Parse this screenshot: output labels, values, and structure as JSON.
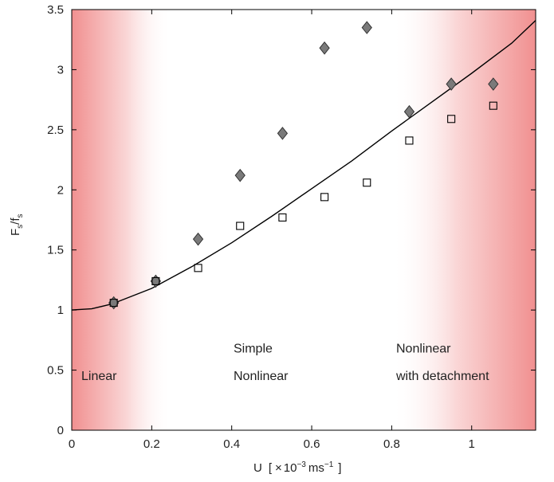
{
  "chart_data": {
    "type": "scatter",
    "xlim": [
      0,
      1.16
    ],
    "ylim": [
      0,
      3.5
    ],
    "x_ticks": [
      "0",
      "0.2",
      "0.4",
      "0.6",
      "0.8",
      "1"
    ],
    "y_ticks": [
      "0",
      "0.5",
      "1",
      "1.5",
      "2",
      "2.5",
      "3",
      "3.5"
    ],
    "xlabel": {
      "main": "U",
      "bracket_open": "[",
      "times": "×",
      "base": "10",
      "exp": "−3",
      "unit": "ms",
      "unit_exp": "−1",
      "bracket_close": "]"
    },
    "ylabel": {
      "main": "F",
      "sub1": "s",
      "slash": "/f",
      "sub2": "s"
    },
    "grid": false,
    "series": [
      {
        "marker": "diamond",
        "color": "#7a7a7a",
        "points": [
          {
            "x": 0.105,
            "y": 1.06
          },
          {
            "x": 0.21,
            "y": 1.24
          },
          {
            "x": 0.316,
            "y": 1.59
          },
          {
            "x": 0.421,
            "y": 2.12
          },
          {
            "x": 0.527,
            "y": 2.47
          },
          {
            "x": 0.632,
            "y": 3.18
          },
          {
            "x": 0.738,
            "y": 3.35
          },
          {
            "x": 0.844,
            "y": 2.65
          },
          {
            "x": 0.949,
            "y": 2.88
          },
          {
            "x": 1.054,
            "y": 2.88
          }
        ]
      },
      {
        "marker": "open-square",
        "color": "#000000",
        "points": [
          {
            "x": 0.105,
            "y": 1.06
          },
          {
            "x": 0.21,
            "y": 1.24
          },
          {
            "x": 0.316,
            "y": 1.35
          },
          {
            "x": 0.421,
            "y": 1.7
          },
          {
            "x": 0.527,
            "y": 1.77
          },
          {
            "x": 0.632,
            "y": 1.94
          },
          {
            "x": 0.738,
            "y": 2.06
          },
          {
            "x": 0.844,
            "y": 2.41
          },
          {
            "x": 0.949,
            "y": 2.59
          },
          {
            "x": 1.054,
            "y": 2.7
          }
        ]
      },
      {
        "marker": "curve",
        "color": "#000000",
        "points": [
          {
            "x": 0.0,
            "y": 1.0
          },
          {
            "x": 0.05,
            "y": 1.01
          },
          {
            "x": 0.1,
            "y": 1.05
          },
          {
            "x": 0.2,
            "y": 1.18
          },
          {
            "x": 0.3,
            "y": 1.36
          },
          {
            "x": 0.4,
            "y": 1.56
          },
          {
            "x": 0.5,
            "y": 1.78
          },
          {
            "x": 0.6,
            "y": 2.01
          },
          {
            "x": 0.7,
            "y": 2.24
          },
          {
            "x": 0.8,
            "y": 2.49
          },
          {
            "x": 0.9,
            "y": 2.73
          },
          {
            "x": 1.0,
            "y": 2.97
          },
          {
            "x": 1.1,
            "y": 3.22
          },
          {
            "x": 1.16,
            "y": 3.41
          }
        ]
      }
    ],
    "regions": [
      {
        "label_lines": [
          "Linear"
        ],
        "x_start": 0.0,
        "x_end": 0.25,
        "shade": "left"
      },
      {
        "label_lines": [
          "Simple",
          "Nonlinear"
        ],
        "x_start": 0.25,
        "x_end": 0.8,
        "shade": "none"
      },
      {
        "label_lines": [
          "Nonlinear",
          "with detachment"
        ],
        "x_start": 0.8,
        "x_end": 1.16,
        "shade": "right"
      }
    ],
    "region_label_y": [
      0.68,
      0.45
    ],
    "shade_color": "#f08a8a"
  }
}
